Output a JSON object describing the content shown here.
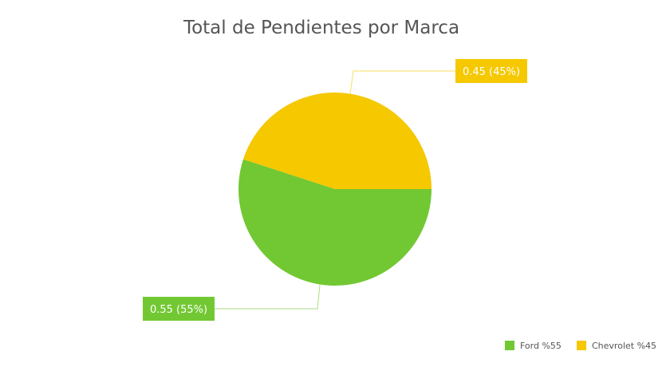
{
  "chart_data": {
    "type": "pie",
    "title": "Total de Pendientes por Marca",
    "slices": [
      {
        "label": "Ford %55",
        "value": 0.55,
        "data_label": "0.55 (55%)",
        "color": "#72c832"
      },
      {
        "label": "Chevrolet %45",
        "value": 0.45,
        "data_label": "0.45 (45%)",
        "color": "#f5c800"
      }
    ],
    "legend": {
      "position": "bottom-right"
    }
  }
}
